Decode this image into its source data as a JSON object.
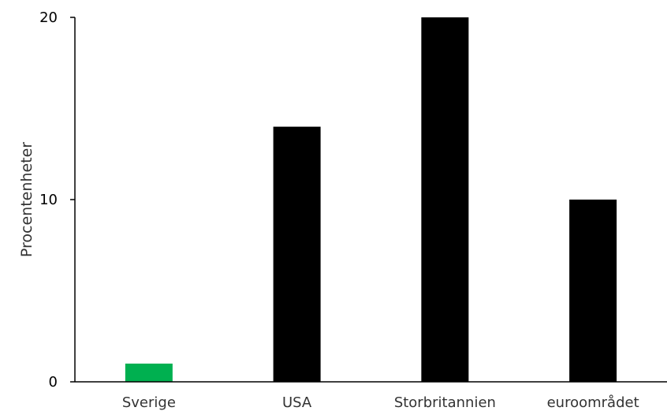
{
  "chart_data": {
    "type": "bar",
    "title": "",
    "xlabel": "",
    "ylabel": "Procentenheter",
    "categories": [
      "Sverige",
      "USA",
      "Storbritannien",
      "euroområdet"
    ],
    "values": [
      1,
      14,
      20,
      10
    ],
    "bar_colors": [
      "#00b050",
      "#000000",
      "#000000",
      "#000000"
    ],
    "ylim": [
      0,
      20
    ],
    "yticks": [
      0,
      10,
      20
    ],
    "grid": false,
    "legend": "none"
  }
}
